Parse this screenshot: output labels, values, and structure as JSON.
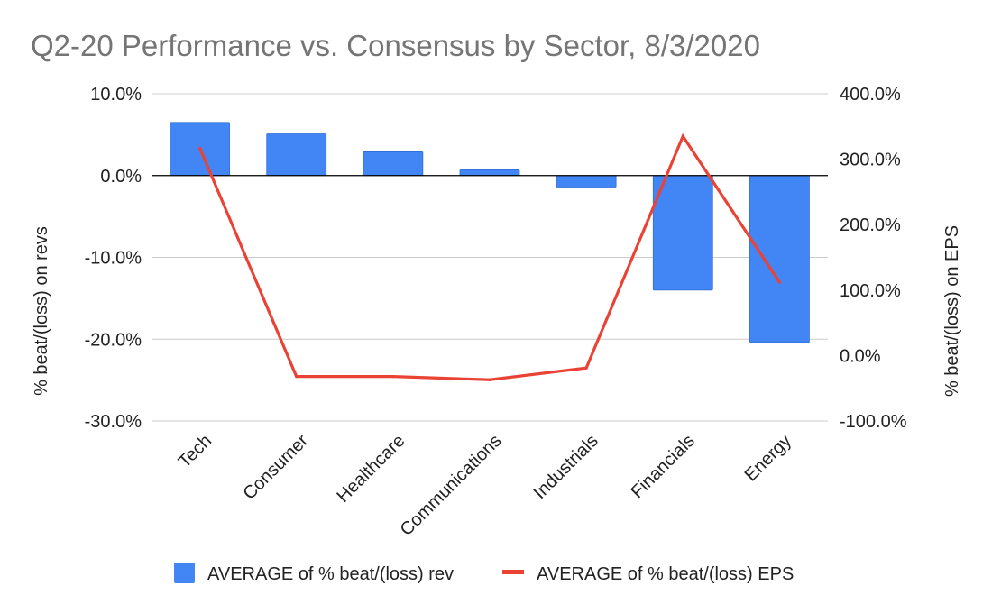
{
  "chart_data": {
    "type": "bar",
    "title": "Q2-20 Performance vs. Consensus by Sector, 8/3/2020",
    "categories": [
      "Tech",
      "Consumer",
      "Healthcare",
      "Communications",
      "Industrials",
      "Financials",
      "Energy"
    ],
    "series": [
      {
        "name": "AVERAGE of % beat/(loss) rev",
        "type": "bar",
        "axis": "left",
        "color": "#4285f4",
        "values": [
          6.5,
          5.1,
          2.9,
          0.7,
          -1.4,
          -14.0,
          -20.4
        ]
      },
      {
        "name": "AVERAGE of % beat/(loss) EPS",
        "type": "line",
        "axis": "right",
        "color": "#ea4335",
        "values": [
          317,
          -32,
          -32,
          -37,
          -19,
          335,
          112
        ]
      }
    ],
    "left_axis": {
      "label": "% beat/(loss) on revs",
      "range": [
        -30,
        10
      ],
      "ticks": [
        10,
        0,
        -10,
        -20,
        -30
      ],
      "tick_labels": [
        "10.0%",
        "0.0%",
        "-10.0%",
        "-20.0%",
        "-30.0%"
      ]
    },
    "right_axis": {
      "label": "% beat/(loss) on EPS",
      "range": [
        -100,
        400
      ],
      "ticks": [
        400,
        300,
        200,
        100,
        0,
        -100
      ],
      "tick_labels": [
        "400.0%",
        "300.0%",
        "200.0%",
        "100.0%",
        "0.0%",
        "-100.0%"
      ]
    },
    "grid": true,
    "legend": "bottom"
  }
}
